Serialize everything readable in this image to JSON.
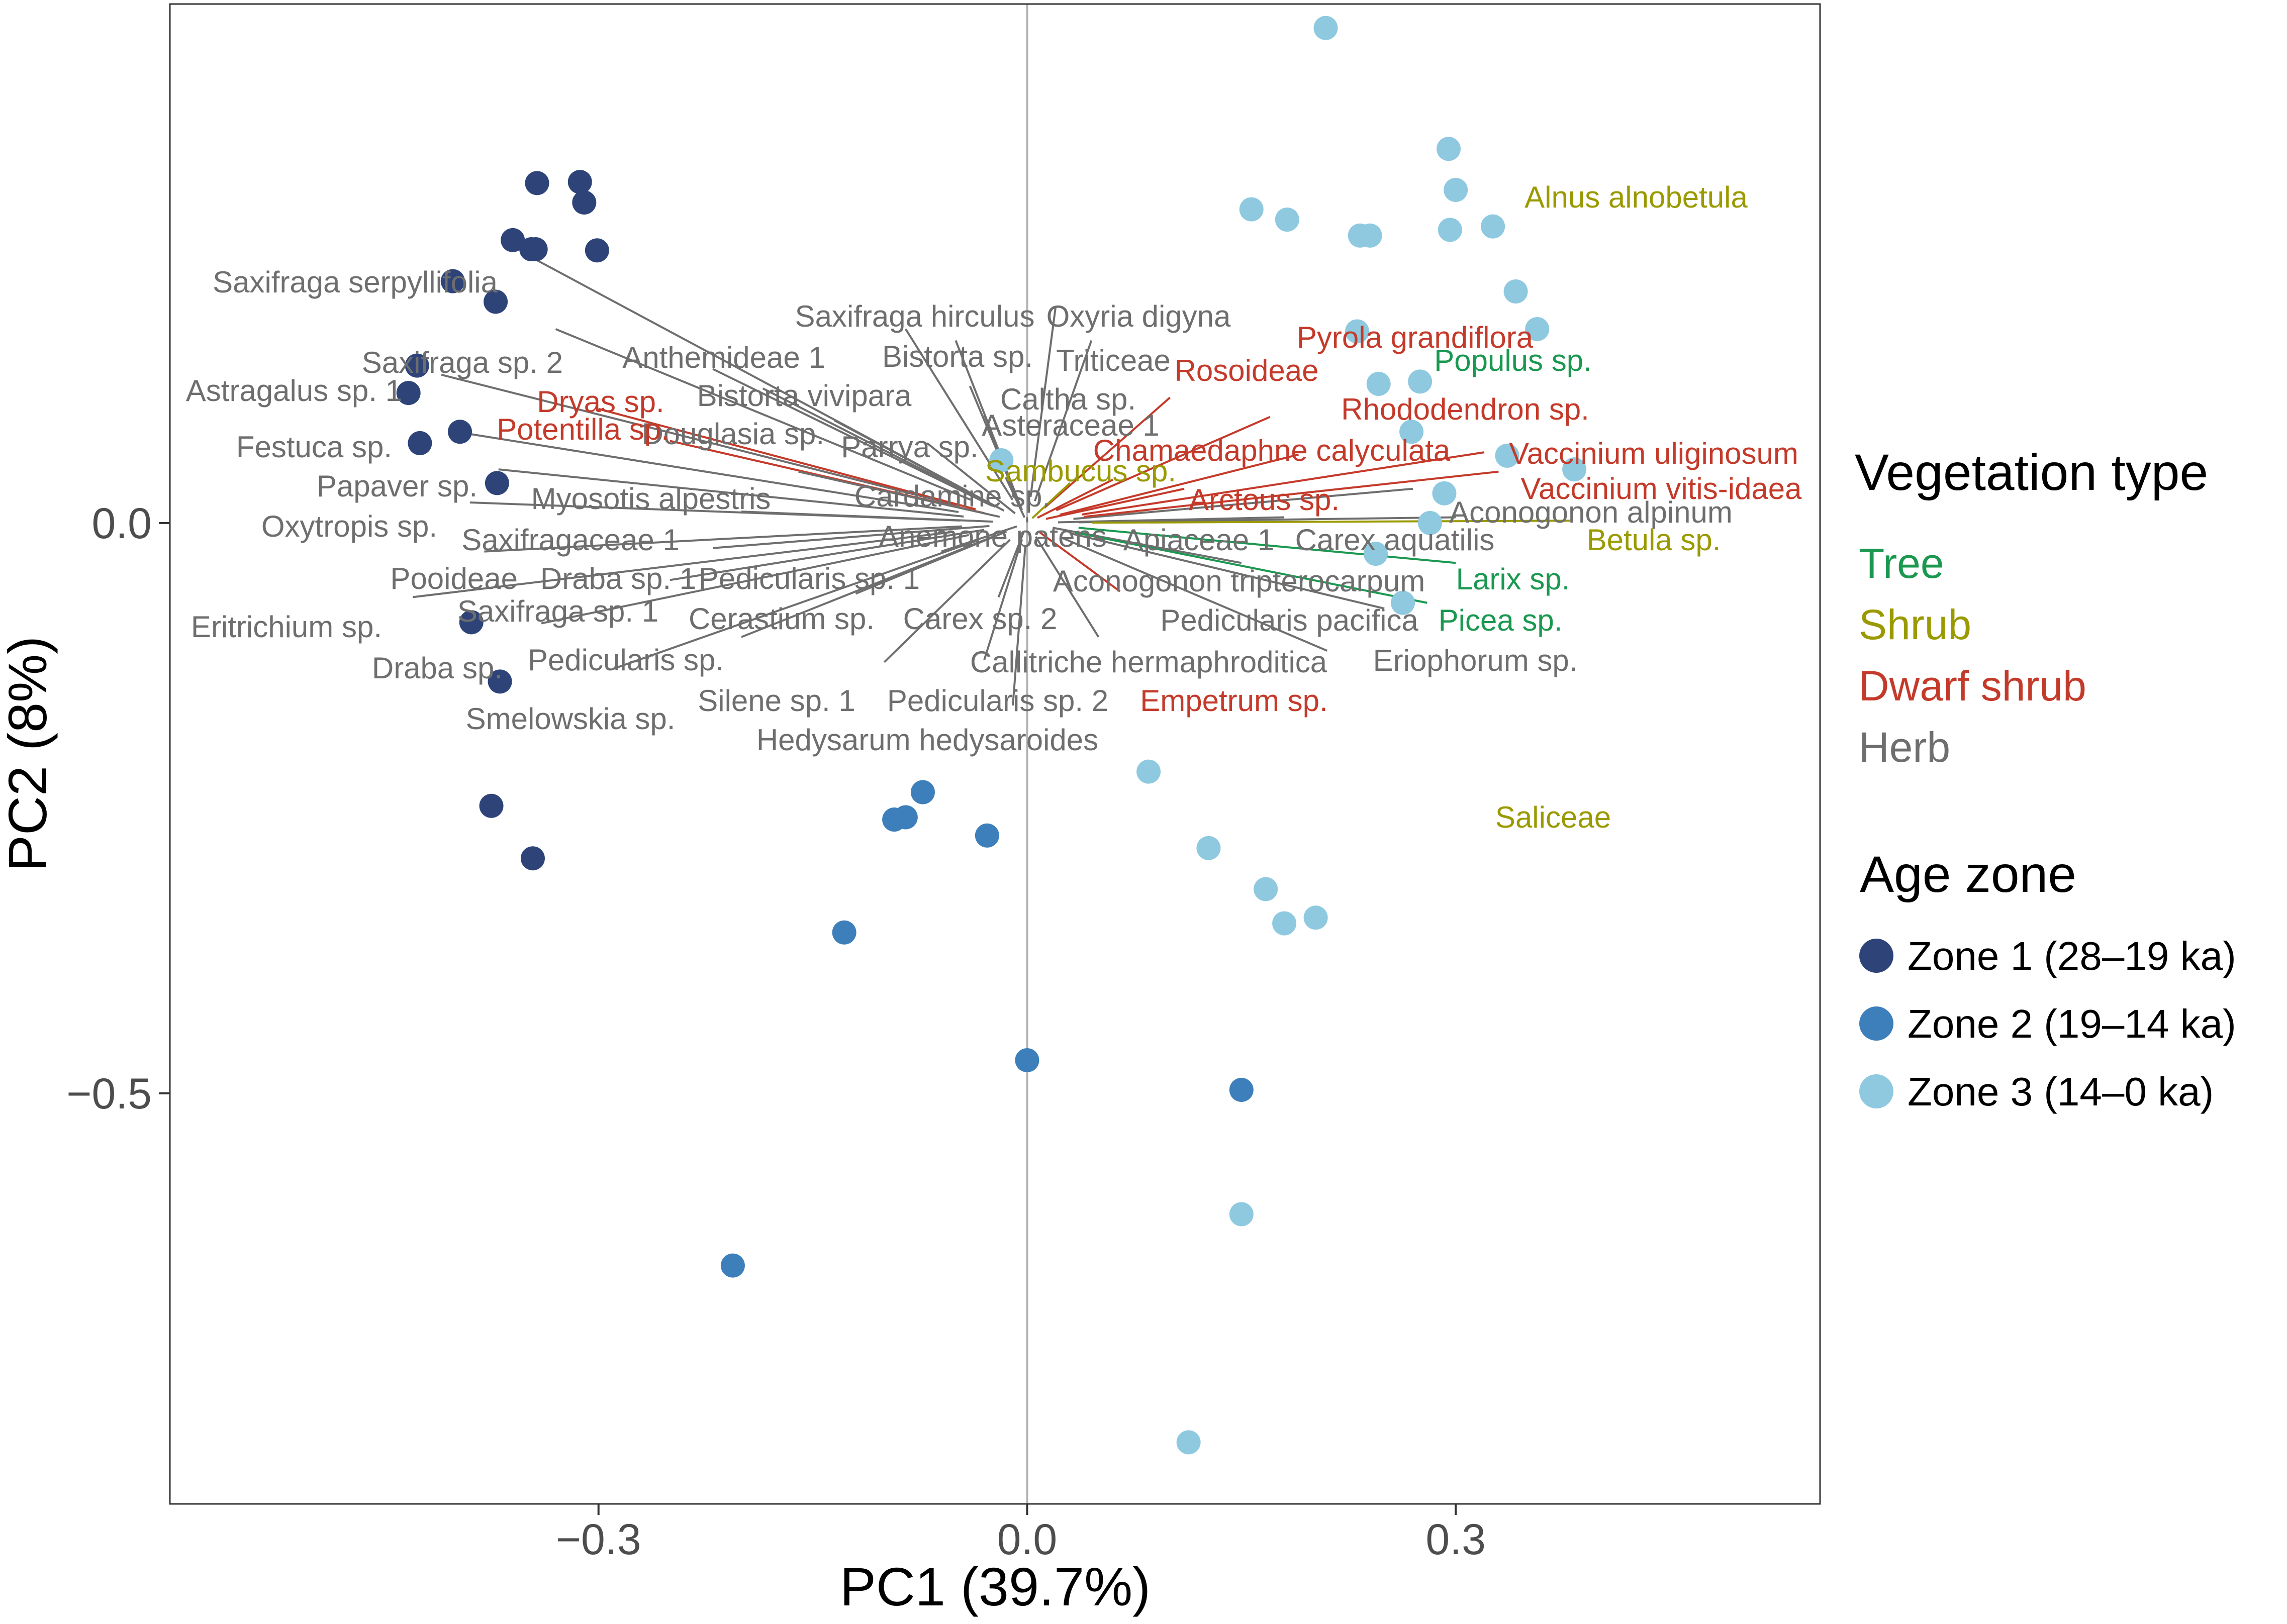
{
  "chart_data": {
    "type": "scatter",
    "title": "",
    "xlabel": "PC1 (39.7%)",
    "ylabel": "PC2 (8%)",
    "xlim": [
      -0.6,
      0.555
    ],
    "ylim": [
      -0.86,
      0.455
    ],
    "x_ticks": [
      {
        "value": -0.3,
        "label": "−0.3"
      },
      {
        "value": 0.0,
        "label": "0.0"
      },
      {
        "value": 0.3,
        "label": "0.3"
      }
    ],
    "y_ticks": [
      {
        "value": 0.0,
        "label": "0.0"
      },
      {
        "value": -0.5,
        "label": "−0.5"
      }
    ],
    "grid": false,
    "zero_lines": true,
    "legend_position": "right",
    "legend_vegetation": {
      "title": "Vegetation type",
      "items": [
        {
          "key": "tree",
          "label": "Tree",
          "color": "#1a9850"
        },
        {
          "key": "shrub",
          "label": "Shrub",
          "color": "#9a9a00"
        },
        {
          "key": "dwarf",
          "label": "Dwarf shrub",
          "color": "#c43a2a"
        },
        {
          "key": "herb",
          "label": "Herb",
          "color": "#6e6e6e"
        }
      ]
    },
    "legend_zone": {
      "title": "Age zone",
      "items": [
        {
          "key": "z1",
          "label": "Zone 1 (28–19 ka)",
          "color": "#2e4478"
        },
        {
          "key": "z2",
          "label": "Zone 2 (19–14 ka)",
          "color": "#3d7fba"
        },
        {
          "key": "z3",
          "label": "Zone 3 (14–0 ka)",
          "color": "#8ec9e0"
        }
      ]
    },
    "series": [
      {
        "name": "Zone 1 (28–19 ka)",
        "zone": "z1",
        "points": [
          [
            -0.343,
            0.298
          ],
          [
            -0.313,
            0.299
          ],
          [
            -0.31,
            0.281
          ],
          [
            -0.301,
            0.239
          ],
          [
            -0.36,
            0.248
          ],
          [
            -0.347,
            0.24
          ],
          [
            -0.344,
            0.24
          ],
          [
            -0.402,
            0.212
          ],
          [
            -0.372,
            0.194
          ],
          [
            -0.427,
            0.138
          ],
          [
            -0.433,
            0.114
          ],
          [
            -0.425,
            0.07
          ],
          [
            -0.397,
            0.08
          ],
          [
            -0.371,
            0.035
          ],
          [
            -0.389,
            -0.087
          ],
          [
            -0.369,
            -0.139
          ],
          [
            -0.375,
            -0.248
          ],
          [
            -0.346,
            -0.294
          ]
        ]
      },
      {
        "name": "Zone 2 (19–14 ka)",
        "zone": "z2",
        "points": [
          [
            -0.073,
            -0.236
          ],
          [
            -0.085,
            -0.258
          ],
          [
            -0.093,
            -0.26
          ],
          [
            -0.028,
            -0.274
          ],
          [
            -0.128,
            -0.359
          ],
          [
            0.0,
            -0.471
          ],
          [
            0.15,
            -0.497
          ],
          [
            -0.206,
            -0.651
          ]
        ]
      },
      {
        "name": "Zone 3 (14–0 ka)",
        "zone": "z3",
        "points": [
          [
            0.209,
            0.434
          ],
          [
            0.295,
            0.328
          ],
          [
            0.3,
            0.292
          ],
          [
            0.296,
            0.257
          ],
          [
            0.326,
            0.26
          ],
          [
            0.157,
            0.275
          ],
          [
            0.182,
            0.266
          ],
          [
            0.233,
            0.252
          ],
          [
            0.24,
            0.252
          ],
          [
            0.342,
            0.203
          ],
          [
            0.357,
            0.17
          ],
          [
            0.231,
            0.168
          ],
          [
            0.246,
            0.122
          ],
          [
            0.275,
            0.124
          ],
          [
            0.269,
            0.08
          ],
          [
            0.336,
            0.059
          ],
          [
            0.383,
            0.047
          ],
          [
            0.292,
            0.026
          ],
          [
            0.282,
            0.0
          ],
          [
            0.244,
            -0.027
          ],
          [
            0.263,
            -0.07
          ],
          [
            -0.018,
            0.055
          ],
          [
            0.085,
            -0.218
          ],
          [
            0.127,
            -0.285
          ],
          [
            0.167,
            -0.321
          ],
          [
            0.18,
            -0.351
          ],
          [
            0.202,
            -0.346
          ],
          [
            0.15,
            -0.606
          ],
          [
            0.113,
            -0.806
          ]
        ]
      }
    ],
    "loadings": [
      {
        "label": "Saxifraga serpyllifolia",
        "type": "herb",
        "tip": [
          -0.35,
          0.235
        ]
      },
      {
        "label": "Saxifraga sp. 2",
        "type": "herb",
        "tip": [
          -0.33,
          0.17
        ]
      },
      {
        "label": "Anthemideae 1",
        "type": "herb",
        "tip": [
          -0.22,
          0.135
        ]
      },
      {
        "label": "Bistorta vivipara",
        "type": "herb",
        "tip": [
          -0.185,
          0.118
        ]
      },
      {
        "label": "Astragalus sp. 1",
        "type": "herb",
        "tip": [
          -0.41,
          0.13
        ]
      },
      {
        "label": "Douglasia sp.",
        "type": "herb",
        "tip": [
          -0.135,
          0.09
        ]
      },
      {
        "label": "Dryas sp.",
        "type": "dwarf",
        "tip": [
          -0.3,
          0.1
        ]
      },
      {
        "label": "Potentilla sp.",
        "type": "dwarf",
        "tip": [
          -0.25,
          0.072
        ]
      },
      {
        "label": "Festuca sp.",
        "type": "herb",
        "tip": [
          -0.4,
          0.08
        ]
      },
      {
        "label": "Papaver sp.",
        "type": "herb",
        "tip": [
          -0.37,
          0.047
        ]
      },
      {
        "label": "Oxytropis sp.",
        "type": "herb",
        "tip": [
          -0.39,
          0.018
        ]
      },
      {
        "label": "Myosotis alpestris",
        "type": "herb",
        "tip": [
          -0.16,
          0.045
        ]
      },
      {
        "label": "Saxifragaceae 1",
        "type": "herb",
        "tip": [
          -0.2,
          0.01
        ]
      },
      {
        "label": "Pooideae",
        "type": "herb",
        "tip": [
          -0.38,
          -0.025
        ]
      },
      {
        "label": "Draba sp. 1",
        "type": "herb",
        "tip": [
          -0.22,
          -0.022
        ]
      },
      {
        "label": "Pedicularis sp. 1",
        "type": "herb",
        "tip": [
          -0.06,
          -0.025
        ]
      },
      {
        "label": "Saxifraga sp. 1",
        "type": "herb",
        "tip": [
          -0.25,
          -0.05
        ]
      },
      {
        "label": "Eritrichium sp.",
        "type": "herb",
        "tip": [
          -0.43,
          -0.065
        ]
      },
      {
        "label": "Draba sp.",
        "type": "herb",
        "tip": [
          -0.34,
          -0.088
        ]
      },
      {
        "label": "Cerastium sp.",
        "type": "herb",
        "tip": [
          -0.12,
          -0.062
        ]
      },
      {
        "label": "Pedicularis sp.",
        "type": "herb",
        "tip": [
          -0.2,
          -0.1
        ]
      },
      {
        "label": "Smelowskia sp.",
        "type": "herb",
        "tip": [
          -0.29,
          -0.128
        ]
      },
      {
        "label": "Carex sp. 2",
        "type": "herb",
        "tip": [
          -0.02,
          -0.065
        ]
      },
      {
        "label": "Silene sp. 1",
        "type": "herb",
        "tip": [
          -0.1,
          -0.122
        ]
      },
      {
        "label": "Pedicularis sp. 2",
        "type": "herb",
        "tip": [
          -0.03,
          -0.12
        ]
      },
      {
        "label": "Hedysarum hedysaroides",
        "type": "herb",
        "tip": [
          -0.01,
          -0.16
        ]
      },
      {
        "label": "Callitriche hermaphroditica",
        "type": "herb",
        "tip": [
          0.05,
          -0.1
        ]
      },
      {
        "label": "Saxifraga hirculus",
        "type": "herb",
        "tip": [
          -0.085,
          0.17
        ]
      },
      {
        "label": "Oxyria digyna",
        "type": "herb",
        "tip": [
          0.02,
          0.19
        ]
      },
      {
        "label": "Bistorta sp.",
        "type": "herb",
        "tip": [
          -0.05,
          0.16
        ]
      },
      {
        "label": "Triticeae",
        "type": "herb",
        "tip": [
          0.045,
          0.16
        ]
      },
      {
        "label": "Caltha sp.",
        "type": "herb",
        "tip": [
          -0.04,
          0.12
        ]
      },
      {
        "label": "Asteraceae 1",
        "type": "herb",
        "tip": [
          -0.03,
          0.095
        ]
      },
      {
        "label": "Parrya sp.",
        "type": "herb",
        "tip": [
          -0.07,
          0.07
        ]
      },
      {
        "label": "Cardamine sp.",
        "type": "herb",
        "tip": [
          -0.015,
          0.04
        ]
      },
      {
        "label": "Anemone patens",
        "type": "herb",
        "tip": [
          0.0,
          0.005
        ]
      },
      {
        "label": "Apiaceae 1",
        "type": "herb",
        "tip": [
          0.18,
          0.005
        ]
      },
      {
        "label": "Carex aquatilis",
        "type": "herb",
        "tip": [
          0.3,
          0.005
        ]
      },
      {
        "label": "Aconogonon alpinum",
        "type": "herb",
        "tip": [
          0.27,
          0.03
        ]
      },
      {
        "label": "Aconogonon tripterocarpum",
        "type": "herb",
        "tip": [
          0.15,
          -0.035
        ]
      },
      {
        "label": "Pedicularis pacifica",
        "type": "herb",
        "tip": [
          0.25,
          -0.075
        ]
      },
      {
        "label": "Eriophorum sp.",
        "type": "herb",
        "tip": [
          0.21,
          -0.112
        ]
      },
      {
        "label": "Rosoideae",
        "type": "dwarf",
        "tip": [
          0.1,
          0.11
        ]
      },
      {
        "label": "Pyrola grandiflora",
        "type": "dwarf",
        "tip": [
          0.19,
          0.06
        ]
      },
      {
        "label": "Rhododendron sp.",
        "type": "dwarf",
        "tip": [
          0.17,
          0.093
        ]
      },
      {
        "label": "Chamaedaphne calyculata",
        "type": "dwarf",
        "tip": [
          0.06,
          0.038
        ]
      },
      {
        "label": "Arctous sp.",
        "type": "dwarf",
        "tip": [
          0.11,
          0.03
        ]
      },
      {
        "label": "Vaccinium uliginosum",
        "type": "dwarf",
        "tip": [
          0.32,
          0.062
        ]
      },
      {
        "label": "Vaccinium vitis-idaea",
        "type": "dwarf",
        "tip": [
          0.33,
          0.045
        ]
      },
      {
        "label": "Empetrum sp.",
        "type": "dwarf",
        "tip": [
          0.065,
          -0.06
        ]
      },
      {
        "label": "Sambucus sp.",
        "type": "shrub",
        "tip": [
          0.03,
          0.035
        ]
      },
      {
        "label": "Betula sp.",
        "type": "shrub",
        "tip": [
          0.38,
          0.002
        ]
      },
      {
        "label": "Alnus alnobetula",
        "type": "shrub",
        "tip": null
      },
      {
        "label": "Saliceae",
        "type": "shrub",
        "tip": null
      },
      {
        "label": "Populus sp.",
        "type": "tree",
        "tip": null
      },
      {
        "label": "Larix sp.",
        "type": "tree",
        "tip": [
          0.3,
          -0.035
        ]
      },
      {
        "label": "Picea sp.",
        "type": "tree",
        "tip": [
          0.28,
          -0.07
        ]
      }
    ]
  }
}
